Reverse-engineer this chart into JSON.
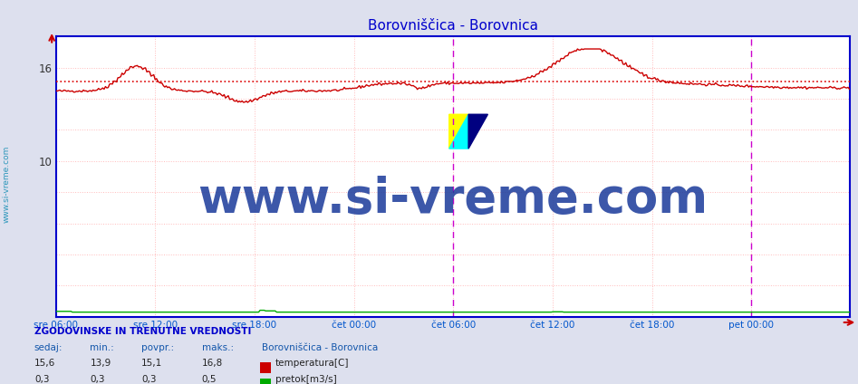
{
  "title": "Borovniščica - Borovnica",
  "bg_color": "#dde0ee",
  "plot_bg_color": "#ffffff",
  "border_color": "#0000cc",
  "grid_color": "#ffbbbb",
  "x_labels": [
    "sre 06:00",
    "sre 12:00",
    "sre 18:00",
    "čet 00:00",
    "čet 06:00",
    "čet 12:00",
    "čet 18:00",
    "pet 00:00"
  ],
  "x_positions": [
    0,
    72,
    144,
    216,
    288,
    360,
    432,
    504
  ],
  "total_points": 576,
  "ylim": [
    0,
    18
  ],
  "yticks": [
    10,
    16
  ],
  "temp_avg": 15.1,
  "temp_min": 13.9,
  "temp_max": 16.8,
  "temp_color": "#cc0000",
  "flow_color": "#00aa00",
  "avg_line_color": "#dd0000",
  "magenta_line1": 288,
  "magenta_line2": 504,
  "magenta_color": "#cc00cc",
  "watermark": "www.si-vreme.com",
  "watermark_color": "#1a3a9a",
  "watermark_fontsize": 38,
  "sidebar_text": "www.si-vreme.com",
  "sidebar_color": "#1a8fb5",
  "table_title": "ZGODOVINSKE IN TRENUTNE VREDNOSTI",
  "table_headers": [
    "sedaj:",
    "min.:",
    "povpr.:",
    "maks.:",
    "Borovniščica - Borovnica"
  ],
  "table_row1": [
    "15,6",
    "13,9",
    "15,1",
    "16,8",
    "temperatura[C]"
  ],
  "table_row2": [
    "0,3",
    "0,3",
    "0,3",
    "0,5",
    "pretok[m3/s]"
  ],
  "row1_color": "#cc0000",
  "row2_color": "#00aa00",
  "figsize": [
    9.47,
    4.24
  ],
  "dpi": 100
}
